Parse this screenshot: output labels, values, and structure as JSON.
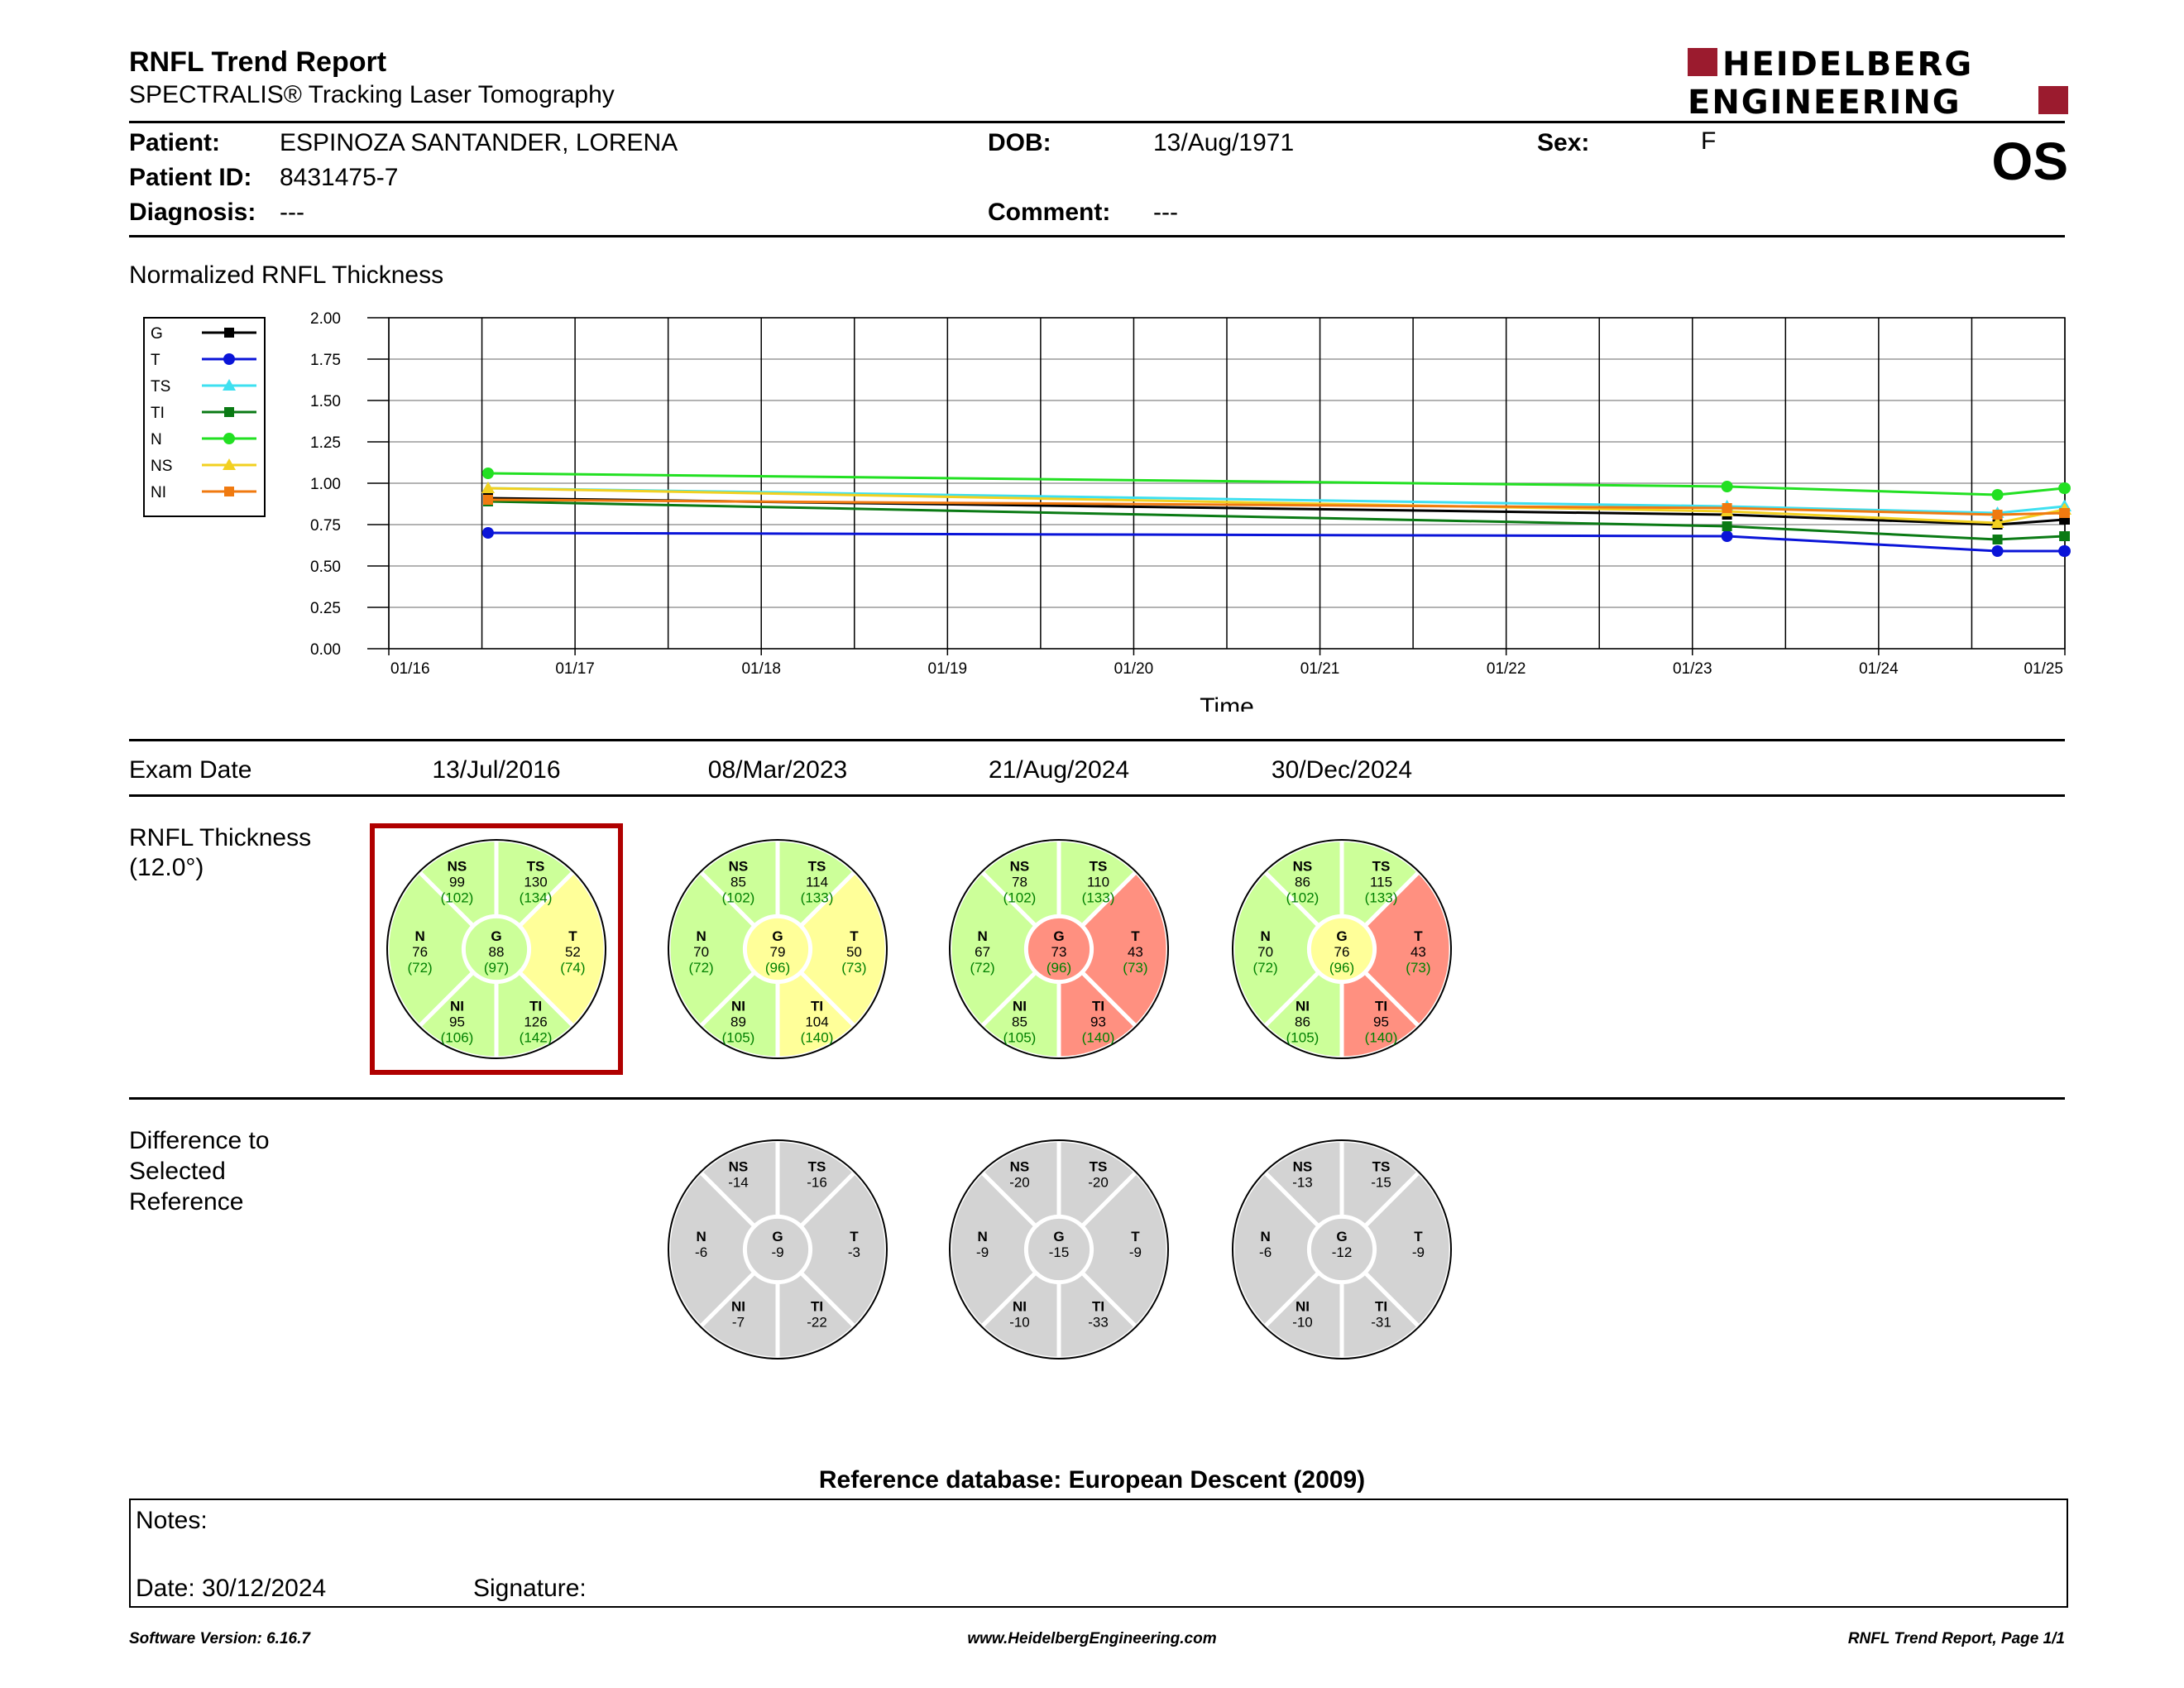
{
  "header": {
    "title": "RNFL Trend Report",
    "subtitle": "SPECTRALIS® Tracking Laser Tomography",
    "logo_line1": "HEIDELBERG",
    "logo_line2": "ENGINEERING",
    "eye": "OS",
    "colors": {
      "brand": "#9b1b2e"
    }
  },
  "patient": {
    "name_label": "Patient:",
    "name": "ESPINOZA SANTANDER, LORENA",
    "id_label": "Patient ID:",
    "id": "8431475-7",
    "diagnosis_label": "Diagnosis:",
    "diagnosis": "---",
    "dob_label": "DOB:",
    "dob": "13/Aug/1971",
    "comment_label": "Comment:",
    "comment": "---",
    "sex_label": "Sex:",
    "sex": "F"
  },
  "chart_title": "Normalized RNFL Thickness",
  "chart_data": {
    "type": "line",
    "title": "",
    "xlabel": "Time",
    "ylabel": "",
    "ylim": [
      0,
      2
    ],
    "xlim": [
      "2016-01",
      "2025-01"
    ],
    "yticks": [
      "0.00",
      "0.25",
      "0.50",
      "0.75",
      "1.00",
      "1.25",
      "1.50",
      "1.75",
      "2.00"
    ],
    "xticks": [
      "01/16",
      "01/17",
      "01/18",
      "01/19",
      "01/20",
      "01/21",
      "01/22",
      "01/23",
      "01/24",
      "01/25"
    ],
    "x": [
      "2016-07-13",
      "2023-03-08",
      "2024-08-21",
      "2024-12-30"
    ],
    "grid": true,
    "legend_position": "top-left",
    "series": [
      {
        "name": "G",
        "color": "#000000",
        "marker": "square",
        "values": [
          0.91,
          0.81,
          0.75,
          0.78
        ]
      },
      {
        "name": "T",
        "color": "#0a14d8",
        "marker": "circle",
        "values": [
          0.7,
          0.68,
          0.59,
          0.59
        ]
      },
      {
        "name": "TS",
        "color": "#3ee0f0",
        "marker": "triangle",
        "values": [
          0.97,
          0.86,
          0.82,
          0.86
        ]
      },
      {
        "name": "TI",
        "color": "#0a7a14",
        "marker": "square",
        "values": [
          0.89,
          0.74,
          0.66,
          0.68
        ]
      },
      {
        "name": "N",
        "color": "#22e022",
        "marker": "circle",
        "values": [
          1.06,
          0.98,
          0.93,
          0.97
        ]
      },
      {
        "name": "NS",
        "color": "#f2d020",
        "marker": "triangle",
        "values": [
          0.97,
          0.83,
          0.76,
          0.84
        ]
      },
      {
        "name": "NI",
        "color": "#f07a10",
        "marker": "square",
        "values": [
          0.9,
          0.85,
          0.81,
          0.82
        ]
      }
    ]
  },
  "exams": {
    "label": "Exam Date",
    "dates": [
      "13/Jul/2016",
      "08/Mar/2023",
      "21/Aug/2024",
      "30/Dec/2024"
    ]
  },
  "thickness": {
    "label_line1": "RNFL Thickness",
    "label_line2": "(12.0°)",
    "selected_index": 0,
    "colors": {
      "green": "#ccff99",
      "yellow": "#ffff99",
      "red": "#ff9080",
      "gray": "#d3d3d3",
      "selected_border": "#b00000",
      "ref_text": "#008000"
    },
    "circles": [
      {
        "NS": {
          "v": "99",
          "r": "(102)",
          "c": "green"
        },
        "TS": {
          "v": "130",
          "r": "(134)",
          "c": "green"
        },
        "N": {
          "v": "76",
          "r": "(72)",
          "c": "green"
        },
        "G": {
          "v": "88",
          "r": "(97)",
          "c": "green"
        },
        "T": {
          "v": "52",
          "r": "(74)",
          "c": "yellow"
        },
        "NI": {
          "v": "95",
          "r": "(106)",
          "c": "green"
        },
        "TI": {
          "v": "126",
          "r": "(142)",
          "c": "green"
        }
      },
      {
        "NS": {
          "v": "85",
          "r": "(102)",
          "c": "green"
        },
        "TS": {
          "v": "114",
          "r": "(133)",
          "c": "green"
        },
        "N": {
          "v": "70",
          "r": "(72)",
          "c": "green"
        },
        "G": {
          "v": "79",
          "r": "(96)",
          "c": "yellow"
        },
        "T": {
          "v": "50",
          "r": "(73)",
          "c": "yellow"
        },
        "NI": {
          "v": "89",
          "r": "(105)",
          "c": "green"
        },
        "TI": {
          "v": "104",
          "r": "(140)",
          "c": "yellow"
        }
      },
      {
        "NS": {
          "v": "78",
          "r": "(102)",
          "c": "green"
        },
        "TS": {
          "v": "110",
          "r": "(133)",
          "c": "green"
        },
        "N": {
          "v": "67",
          "r": "(72)",
          "c": "green"
        },
        "G": {
          "v": "73",
          "r": "(96)",
          "c": "red"
        },
        "T": {
          "v": "43",
          "r": "(73)",
          "c": "red"
        },
        "NI": {
          "v": "85",
          "r": "(105)",
          "c": "green"
        },
        "TI": {
          "v": "93",
          "r": "(140)",
          "c": "red"
        }
      },
      {
        "NS": {
          "v": "86",
          "r": "(102)",
          "c": "green"
        },
        "TS": {
          "v": "115",
          "r": "(133)",
          "c": "green"
        },
        "N": {
          "v": "70",
          "r": "(72)",
          "c": "green"
        },
        "G": {
          "v": "76",
          "r": "(96)",
          "c": "yellow"
        },
        "T": {
          "v": "43",
          "r": "(73)",
          "c": "red"
        },
        "NI": {
          "v": "86",
          "r": "(105)",
          "c": "green"
        },
        "TI": {
          "v": "95",
          "r": "(140)",
          "c": "red"
        }
      }
    ]
  },
  "difference": {
    "label_line1": "Difference to",
    "label_line2": "Selected",
    "label_line3": "Reference",
    "circles": [
      null,
      {
        "NS": "-14",
        "TS": "-16",
        "N": "-6",
        "G": "-9",
        "T": "-3",
        "NI": "-7",
        "TI": "-22"
      },
      {
        "NS": "-20",
        "TS": "-20",
        "N": "-9",
        "G": "-15",
        "T": "-9",
        "NI": "-10",
        "TI": "-33"
      },
      {
        "NS": "-13",
        "TS": "-15",
        "N": "-6",
        "G": "-12",
        "T": "-9",
        "NI": "-10",
        "TI": "-31"
      }
    ]
  },
  "reference_db": "Reference database: European Descent (2009)",
  "notes": {
    "notes_label": "Notes:",
    "date": "Date: 30/12/2024",
    "signature": "Signature:"
  },
  "footer": {
    "software": "Software Version: 6.16.7",
    "website": "www.HeidelbergEngineering.com",
    "page": "RNFL Trend Report, Page 1/1"
  }
}
